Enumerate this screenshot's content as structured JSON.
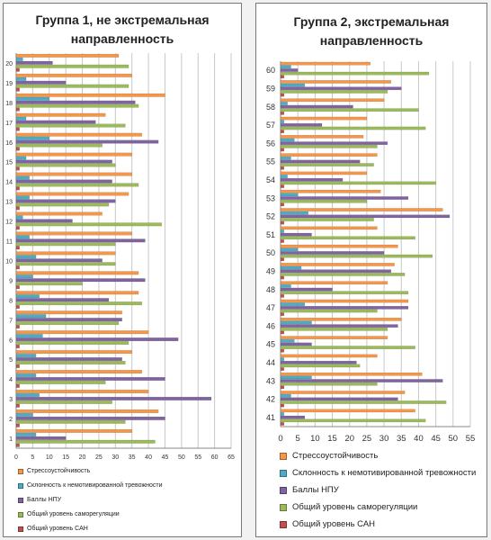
{
  "chart_data": [
    {
      "type": "bar",
      "orientation": "horizontal",
      "title": "Группа 1, не экстремальная\nнаправленность",
      "categories": [
        "1",
        "2",
        "3",
        "4",
        "5",
        "6",
        "7",
        "8",
        "9",
        "10",
        "11",
        "12",
        "13",
        "14",
        "15",
        "16",
        "17",
        "18",
        "19",
        "20"
      ],
      "xlim": [
        0,
        65
      ],
      "xticks": [
        0,
        5,
        10,
        15,
        20,
        25,
        30,
        35,
        40,
        45,
        50,
        55,
        60,
        65
      ],
      "grid": true,
      "legend_position": "bottom",
      "series": [
        {
          "name": "Стрессоустойчивость",
          "color": "#f79646",
          "values": [
            35,
            43,
            40,
            38,
            35,
            40,
            32,
            37,
            37,
            30,
            35,
            26,
            34,
            35,
            35,
            38,
            27,
            45,
            35,
            31
          ]
        },
        {
          "name": "Склонность к немотивированной тревожности",
          "color": "#4bacc6",
          "values": [
            6,
            5,
            7,
            6,
            6,
            8,
            9,
            7,
            5,
            6,
            4,
            2,
            4,
            4,
            3,
            10,
            3,
            10,
            3,
            2
          ]
        },
        {
          "name": "Баллы НПУ",
          "color": "#8064a2",
          "values": [
            15,
            45,
            59,
            45,
            32,
            49,
            32,
            28,
            39,
            26,
            39,
            17,
            30,
            29,
            29,
            43,
            24,
            36,
            15,
            11
          ]
        },
        {
          "name": "Общий уровень саморегуляции",
          "color": "#9bbb59",
          "values": [
            42,
            33,
            29,
            27,
            33,
            34,
            31,
            38,
            20,
            30,
            30,
            44,
            28,
            37,
            30,
            26,
            33,
            37,
            34,
            34
          ]
        },
        {
          "name": "Общий уровень САН",
          "color": "#c0504d",
          "values": [
            1,
            1,
            1,
            1,
            1,
            1,
            1,
            1,
            1,
            1,
            1,
            1,
            1,
            1,
            1,
            1,
            1,
            1,
            1,
            1
          ]
        }
      ]
    },
    {
      "type": "bar",
      "orientation": "horizontal",
      "title": "Группа 2, экстремальная\nнаправленность",
      "categories": [
        "41",
        "42",
        "43",
        "44",
        "45",
        "46",
        "47",
        "48",
        "49",
        "50",
        "51",
        "52",
        "53",
        "54",
        "55",
        "56",
        "57",
        "58",
        "59",
        "60"
      ],
      "xlim": [
        0,
        55
      ],
      "xticks": [
        0,
        5,
        10,
        15,
        20,
        25,
        30,
        35,
        40,
        45,
        50,
        55
      ],
      "grid": true,
      "legend_position": "bottom",
      "series": [
        {
          "name": "Стрессоустойчивость",
          "color": "#f79646",
          "values": [
            39,
            36,
            41,
            28,
            31,
            35,
            37,
            31,
            33,
            34,
            28,
            47,
            29,
            25,
            28,
            24,
            25,
            30,
            32,
            26
          ]
        },
        {
          "name": "Склонность к немотивированной тревожности",
          "color": "#4bacc6",
          "values": [
            1,
            3,
            9,
            1,
            4,
            9,
            7,
            3,
            6,
            5,
            1,
            8,
            5,
            2,
            3,
            4,
            1,
            2,
            7,
            3
          ]
        },
        {
          "name": "Баллы НПУ",
          "color": "#8064a2",
          "values": [
            7,
            34,
            47,
            22,
            9,
            34,
            37,
            15,
            32,
            30,
            9,
            49,
            37,
            18,
            23,
            31,
            12,
            21,
            35,
            5
          ]
        },
        {
          "name": "Общий уровень саморегуляции",
          "color": "#9bbb59",
          "values": [
            42,
            48,
            28,
            23,
            39,
            31,
            28,
            37,
            36,
            44,
            39,
            27,
            25,
            45,
            27,
            28,
            42,
            40,
            31,
            43
          ]
        },
        {
          "name": "Общий уровень САН",
          "color": "#c0504d",
          "values": [
            1,
            1,
            1,
            1,
            1,
            1,
            1,
            1,
            1,
            1,
            1,
            1,
            1,
            1,
            1,
            1,
            1,
            1,
            1,
            1
          ]
        }
      ]
    }
  ]
}
